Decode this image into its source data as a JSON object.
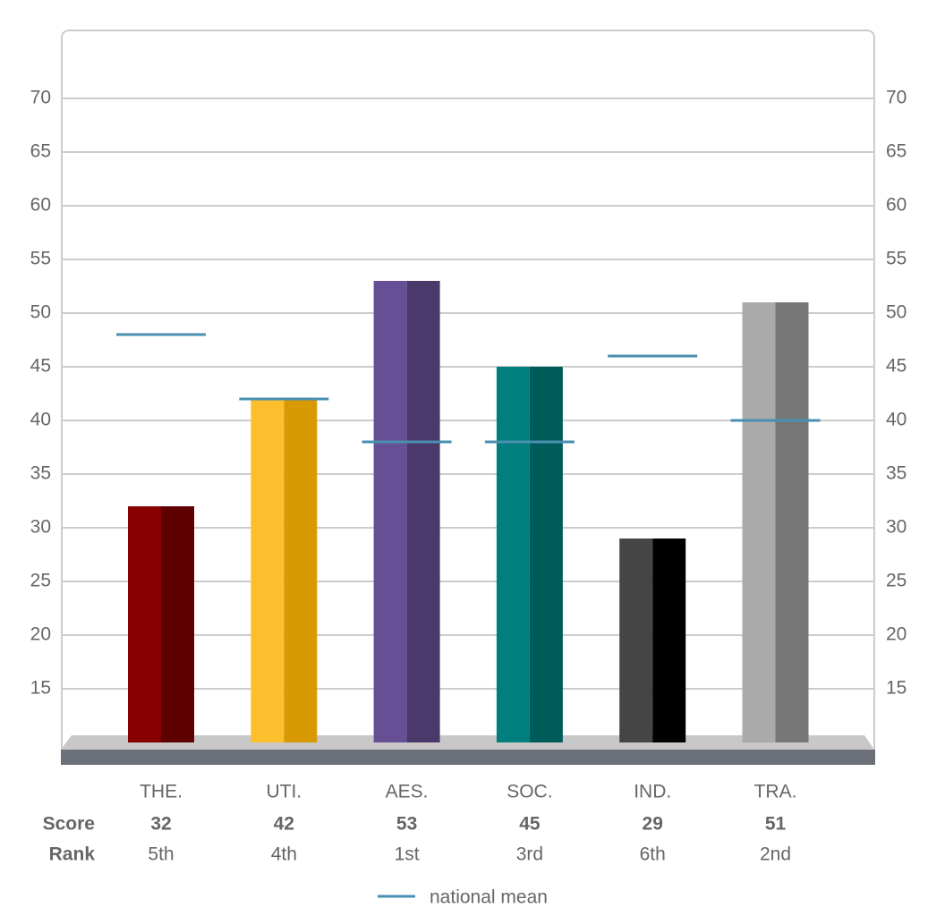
{
  "chart_data": {
    "type": "bar",
    "categories": [
      "THE.",
      "UTI.",
      "AES.",
      "SOC.",
      "IND.",
      "TRA."
    ],
    "series": [
      {
        "name": "Score",
        "values": [
          32,
          42,
          53,
          45,
          29,
          51
        ],
        "colors": [
          [
            "#860000",
            "#5e0000"
          ],
          [
            "#fdbf2d",
            "#d89a00"
          ],
          [
            "#674f96",
            "#4a3a6b"
          ],
          [
            "#007f7e",
            "#005c5b"
          ],
          [
            "#454545",
            "#000000"
          ],
          [
            "#aaaaaa",
            "#777777"
          ]
        ]
      },
      {
        "name": "national mean",
        "color": "#4a8fb0",
        "values": [
          48,
          42,
          38,
          38,
          46,
          40
        ]
      }
    ],
    "rank_label": "Rank",
    "ranks": [
      "5th",
      "4th",
      "1st",
      "3rd",
      "6th",
      "2nd"
    ],
    "ylim": [
      10,
      76
    ],
    "yticks": [
      15,
      20,
      25,
      30,
      35,
      40,
      45,
      50,
      55,
      60,
      65,
      70
    ],
    "grid": true
  }
}
